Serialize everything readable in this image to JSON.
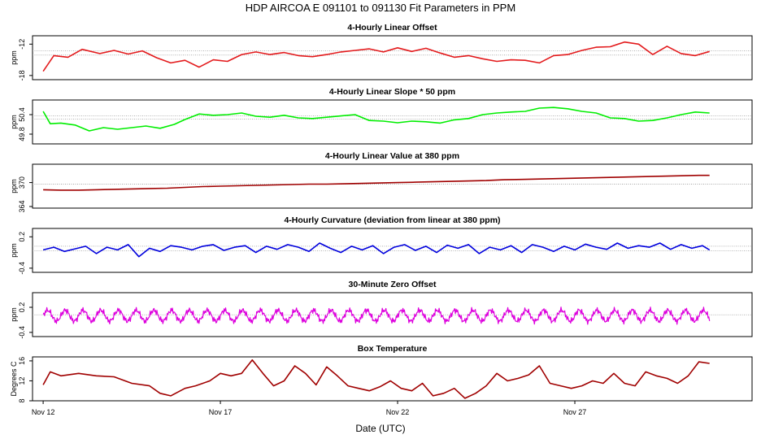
{
  "page_title": "HDP   AIRCOA E   091101 to 091130   Fit Parameters in PPM",
  "colors": {
    "red": "#e31a1c",
    "green": "#00ee00",
    "darkred": "#a00000",
    "blue": "#0000dd",
    "magenta": "#dd00dd",
    "axis": "#000000",
    "refline": "#999999"
  },
  "chart_data": [
    {
      "type": "line",
      "title": "4-Hourly Linear Offset",
      "ylabel": "ppm",
      "yticks": [
        -18,
        -12
      ],
      "ytick_labels": [
        "-18",
        "-12"
      ],
      "ylim": [
        -18.8,
        -10.4
      ],
      "ref_lines": [
        -13.3,
        -14.1
      ],
      "color": "#e31a1c",
      "series": {
        "x": [
          12.0,
          12.3,
          12.7,
          13.1,
          13.6,
          14.0,
          14.4,
          14.8,
          15.2,
          15.6,
          16.0,
          16.4,
          16.8,
          17.2,
          17.6,
          18.0,
          18.4,
          18.8,
          19.2,
          19.6,
          20.0,
          20.4,
          20.8,
          21.2,
          21.6,
          22.0,
          22.4,
          22.8,
          23.2,
          23.6,
          24.0,
          24.4,
          24.8,
          25.2,
          25.6,
          26.0,
          26.4,
          26.8,
          27.2,
          27.6,
          28.0,
          28.4,
          28.8,
          29.2,
          29.6,
          30.0,
          30.4,
          30.8
        ],
        "y": [
          -17.2,
          -14.2,
          -14.5,
          -13.0,
          -13.8,
          -13.2,
          -13.9,
          -13.3,
          -14.6,
          -15.6,
          -15.1,
          -16.4,
          -15.0,
          -15.3,
          -14.0,
          -13.5,
          -14.0,
          -13.6,
          -14.2,
          -14.4,
          -14.0,
          -13.5,
          -13.2,
          -12.9,
          -13.5,
          -12.7,
          -13.4,
          -12.8,
          -13.7,
          -14.5,
          -14.2,
          -14.8,
          -15.3,
          -15.0,
          -15.1,
          -15.6,
          -14.2,
          -14.0,
          -13.2,
          -12.6,
          -12.5,
          -11.6,
          -12.0,
          -14.0,
          -12.4,
          -13.8,
          -14.2,
          -13.4
        ]
      }
    },
    {
      "type": "line",
      "title": "4-Hourly Linear Slope * 50 ppm",
      "ylabel": "ppm",
      "yticks": [
        49.8,
        50.4
      ],
      "ytick_labels": [
        "49.8",
        "50.4"
      ],
      "ylim": [
        49.5,
        50.85
      ],
      "ref_lines": [
        50.36,
        50.26
      ],
      "color": "#00ee00",
      "series": {
        "x": [
          12.0,
          12.2,
          12.5,
          12.9,
          13.3,
          13.7,
          14.1,
          14.5,
          14.9,
          15.3,
          15.7,
          16.0,
          16.4,
          16.8,
          17.2,
          17.6,
          18.0,
          18.4,
          18.8,
          19.2,
          19.6,
          20.0,
          20.4,
          20.8,
          21.2,
          21.6,
          22.0,
          22.4,
          22.8,
          23.2,
          23.6,
          24.0,
          24.4,
          24.8,
          25.2,
          25.6,
          26.0,
          26.4,
          26.8,
          27.2,
          27.6,
          28.0,
          28.4,
          28.8,
          29.2,
          29.6,
          30.0,
          30.4,
          30.8
        ],
        "y": [
          50.5,
          50.12,
          50.14,
          50.08,
          49.9,
          50.0,
          49.95,
          50.0,
          50.05,
          49.98,
          50.1,
          50.25,
          50.42,
          50.38,
          50.4,
          50.45,
          50.35,
          50.32,
          50.38,
          50.3,
          50.28,
          50.32,
          50.36,
          50.4,
          50.22,
          50.2,
          50.15,
          50.2,
          50.18,
          50.14,
          50.24,
          50.28,
          50.4,
          50.45,
          50.48,
          50.5,
          50.6,
          50.62,
          50.58,
          50.5,
          50.45,
          50.3,
          50.28,
          50.2,
          50.22,
          50.3,
          50.4,
          50.48,
          50.45
        ]
      }
    },
    {
      "type": "line",
      "title": "4-Hourly Linear Value at 380 ppm",
      "ylabel": "ppm",
      "yticks": [
        364,
        370
      ],
      "ytick_labels": [
        "364",
        "370"
      ],
      "ylim": [
        363.6,
        374.6
      ],
      "ref_lines": [
        369.6
      ],
      "color": "#a00000",
      "series": {
        "x": [
          12.0,
          12.5,
          13.0,
          13.5,
          14.0,
          14.5,
          15.0,
          15.5,
          16.0,
          16.5,
          17.0,
          17.5,
          18.0,
          18.5,
          19.0,
          19.5,
          20.0,
          20.5,
          21.0,
          21.5,
          22.0,
          22.5,
          23.0,
          23.5,
          24.0,
          24.5,
          25.0,
          25.5,
          26.0,
          26.5,
          27.0,
          27.5,
          28.0,
          28.5,
          29.0,
          29.5,
          30.0,
          30.5,
          30.8
        ],
        "y": [
          368.2,
          368.1,
          368.1,
          368.2,
          368.3,
          368.4,
          368.5,
          368.6,
          368.8,
          369.0,
          369.1,
          369.2,
          369.3,
          369.4,
          369.5,
          369.6,
          369.6,
          369.7,
          369.8,
          369.9,
          370.0,
          370.1,
          370.2,
          370.3,
          370.4,
          370.5,
          370.7,
          370.8,
          370.9,
          371.0,
          371.1,
          371.2,
          371.3,
          371.4,
          371.5,
          371.6,
          371.7,
          371.8,
          371.8
        ]
      }
    },
    {
      "type": "line",
      "title": "4-Hourly Curvature (deviation from linear at 380 ppm)",
      "ylabel": "ppm",
      "yticks": [
        -0.4,
        0.2
      ],
      "ytick_labels": [
        "-0.4",
        "0.2"
      ],
      "ylim": [
        -0.48,
        0.36
      ],
      "ref_lines": [
        0.02,
        -0.07
      ],
      "color": "#0000dd",
      "series": {
        "x": [
          12.0,
          12.3,
          12.6,
          12.9,
          13.2,
          13.5,
          13.8,
          14.1,
          14.4,
          14.7,
          15.0,
          15.3,
          15.6,
          15.9,
          16.2,
          16.5,
          16.8,
          17.1,
          17.4,
          17.7,
          18.0,
          18.3,
          18.6,
          18.9,
          19.2,
          19.5,
          19.8,
          20.1,
          20.4,
          20.7,
          21.0,
          21.3,
          21.6,
          21.9,
          22.2,
          22.5,
          22.8,
          23.1,
          23.4,
          23.7,
          24.0,
          24.3,
          24.6,
          24.9,
          25.2,
          25.5,
          25.8,
          26.1,
          26.4,
          26.7,
          27.0,
          27.3,
          27.6,
          27.9,
          28.2,
          28.5,
          28.8,
          29.1,
          29.4,
          29.7,
          30.0,
          30.3,
          30.6,
          30.8
        ],
        "y": [
          -0.05,
          0.0,
          -0.08,
          -0.03,
          0.02,
          -0.12,
          0.0,
          -0.05,
          0.05,
          -0.18,
          -0.02,
          -0.08,
          0.03,
          0.0,
          -0.05,
          0.02,
          0.05,
          -0.06,
          0.0,
          0.03,
          -0.1,
          0.02,
          -0.04,
          0.05,
          0.0,
          -0.08,
          0.08,
          -0.02,
          -0.1,
          0.02,
          -0.05,
          0.03,
          -0.12,
          0.0,
          0.05,
          -0.06,
          0.02,
          -0.1,
          0.04,
          -0.02,
          0.05,
          -0.12,
          0.0,
          -0.05,
          0.03,
          -0.1,
          0.05,
          0.0,
          -0.08,
          0.02,
          -0.05,
          0.06,
          0.0,
          -0.04,
          0.08,
          -0.02,
          0.03,
          0.0,
          0.08,
          -0.04,
          0.05,
          -0.02,
          0.03,
          -0.05
        ]
      }
    },
    {
      "type": "line",
      "title": "30-Minute Zero Offset",
      "ylabel": "ppm",
      "yticks": [
        -0.4,
        0.2
      ],
      "ytick_labels": [
        "-0.4",
        "0.2"
      ],
      "ylim": [
        -0.5,
        0.55
      ],
      "ref_lines": [
        0.02
      ],
      "color": "#dd00dd",
      "oscillation": {
        "base": 0.0,
        "amplitude": 0.13,
        "cycles_per_day": 2.0,
        "samples_per_day": 48
      },
      "series": {
        "x": [
          12,
          30.8
        ],
        "y": [
          -0.14,
          0.18
        ]
      }
    },
    {
      "type": "line",
      "title": "Box Temperature",
      "ylabel": "Degrees C",
      "yticks": [
        8,
        12,
        16
      ],
      "ytick_labels": [
        "8",
        "12",
        "16"
      ],
      "ylim": [
        8.0,
        16.8
      ],
      "ref_lines": [],
      "color": "#a00000",
      "series": {
        "x": [
          12.0,
          12.2,
          12.5,
          13.0,
          13.5,
          14.0,
          14.5,
          15.0,
          15.3,
          15.6,
          16.0,
          16.3,
          16.7,
          17.0,
          17.3,
          17.6,
          17.9,
          18.2,
          18.5,
          18.8,
          19.1,
          19.4,
          19.7,
          20.0,
          20.3,
          20.6,
          20.9,
          21.2,
          21.5,
          21.8,
          22.1,
          22.4,
          22.7,
          23.0,
          23.3,
          23.6,
          23.9,
          24.2,
          24.5,
          24.8,
          25.1,
          25.4,
          25.7,
          26.0,
          26.3,
          26.6,
          26.9,
          27.2,
          27.5,
          27.8,
          28.1,
          28.4,
          28.7,
          29.0,
          29.3,
          29.6,
          29.9,
          30.2,
          30.5,
          30.8
        ],
        "y": [
          11.2,
          13.8,
          13.0,
          13.5,
          13.0,
          12.8,
          11.5,
          11.0,
          9.5,
          9.0,
          10.5,
          11.0,
          12.0,
          13.5,
          13.0,
          13.5,
          16.2,
          13.5,
          11.0,
          12.0,
          15.0,
          13.5,
          11.2,
          14.8,
          13.0,
          11.0,
          10.5,
          10.0,
          10.8,
          12.0,
          10.5,
          10.0,
          11.5,
          9.0,
          9.5,
          10.5,
          8.5,
          9.5,
          11.0,
          13.5,
          12.0,
          12.5,
          13.2,
          15.0,
          11.5,
          11.0,
          10.5,
          11.0,
          12.0,
          11.5,
          13.5,
          11.5,
          11.0,
          13.8,
          13.0,
          12.5,
          11.5,
          13.0,
          15.8,
          15.5
        ]
      }
    }
  ],
  "x_axis": {
    "label": "Date (UTC)",
    "range": [
      11.7,
      32.0
    ],
    "ticks": [
      12,
      17,
      22,
      27
    ],
    "tick_labels": [
      "Nov 12",
      "Nov 17",
      "Nov 22",
      "Nov 27"
    ]
  }
}
